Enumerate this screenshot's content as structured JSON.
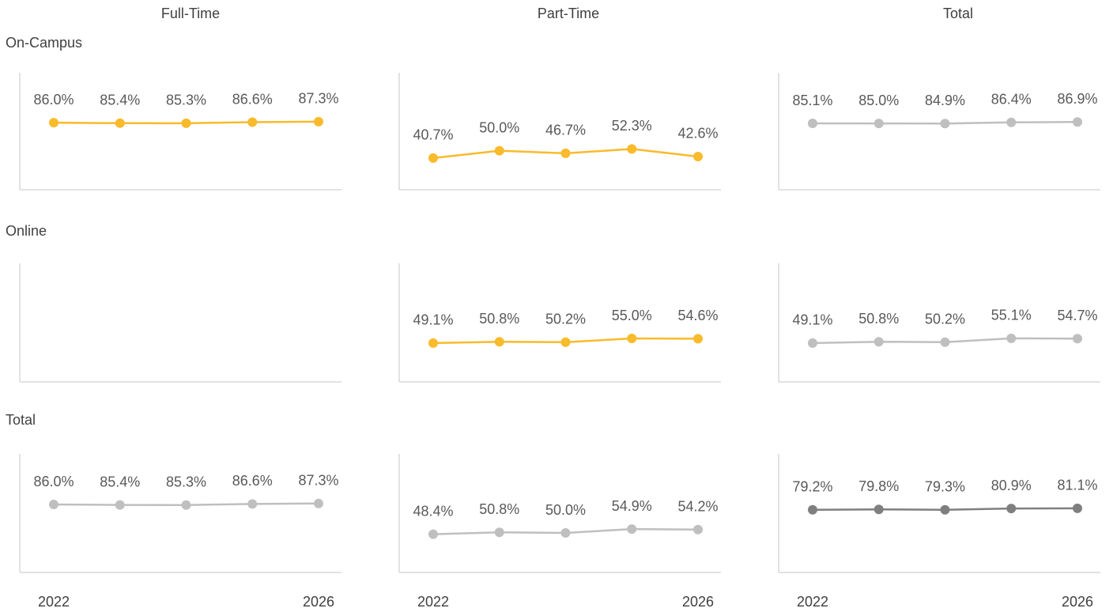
{
  "columns": [
    "Full-Time",
    "Part-Time",
    "Total"
  ],
  "rows": [
    "On-Campus",
    "Online",
    "Total"
  ],
  "chart_data": [
    {
      "type": "line",
      "color": "#f9ba2b",
      "ylim": [
        0,
        150
      ],
      "values": [
        86.0,
        85.4,
        85.3,
        86.6,
        87.3
      ],
      "value_labels": [
        "86.0%",
        "85.4%",
        "85.3%",
        "86.6%",
        "87.3%"
      ]
    },
    {
      "type": "line",
      "color": "#f9ba2b",
      "ylim": [
        0,
        150
      ],
      "values": [
        40.7,
        50.0,
        46.7,
        52.3,
        42.6
      ],
      "value_labels": [
        "40.7%",
        "50.0%",
        "46.7%",
        "52.3%",
        "42.6%"
      ]
    },
    {
      "type": "line",
      "color": "#bfbfbf",
      "ylim": [
        0,
        150
      ],
      "values": [
        85.1,
        85.0,
        84.9,
        86.4,
        86.9
      ],
      "value_labels": [
        "85.1%",
        "85.0%",
        "84.9%",
        "86.4%",
        "86.9%"
      ]
    },
    {
      "type": "line",
      "color": "#f9ba2b",
      "ylim": [
        0,
        150
      ],
      "values": [
        49.1,
        50.8,
        50.2,
        55.0,
        54.6
      ],
      "value_labels": [
        "49.1%",
        "50.8%",
        "50.2%",
        "55.0%",
        "54.6%"
      ]
    },
    {
      "type": "line",
      "color": "#bfbfbf",
      "ylim": [
        0,
        150
      ],
      "values": [
        49.1,
        50.8,
        50.2,
        55.1,
        54.7
      ],
      "value_labels": [
        "49.1%",
        "50.8%",
        "50.2%",
        "55.1%",
        "54.7%"
      ]
    },
    {
      "type": "line",
      "color": "#bfbfbf",
      "ylim": [
        0,
        150
      ],
      "categories": [
        "2022",
        null,
        null,
        null,
        "2026"
      ],
      "values": [
        86.0,
        85.4,
        85.3,
        86.6,
        87.3
      ],
      "value_labels": [
        "86.0%",
        "85.4%",
        "85.3%",
        "86.6%",
        "87.3%"
      ]
    },
    {
      "type": "line",
      "color": "#bfbfbf",
      "ylim": [
        0,
        150
      ],
      "categories": [
        "2022",
        null,
        null,
        null,
        "2026"
      ],
      "values": [
        48.4,
        50.8,
        50.0,
        54.9,
        54.2
      ],
      "value_labels": [
        "48.4%",
        "50.8%",
        "50.0%",
        "54.9%",
        "54.2%"
      ]
    },
    {
      "type": "line",
      "color": "#7f7f7f",
      "ylim": [
        0,
        150
      ],
      "categories": [
        "2022",
        null,
        null,
        null,
        "2026"
      ],
      "values": [
        79.2,
        79.8,
        79.3,
        80.9,
        81.1
      ],
      "value_labels": [
        "79.2%",
        "79.8%",
        "79.3%",
        "80.9%",
        "81.1%"
      ]
    }
  ]
}
